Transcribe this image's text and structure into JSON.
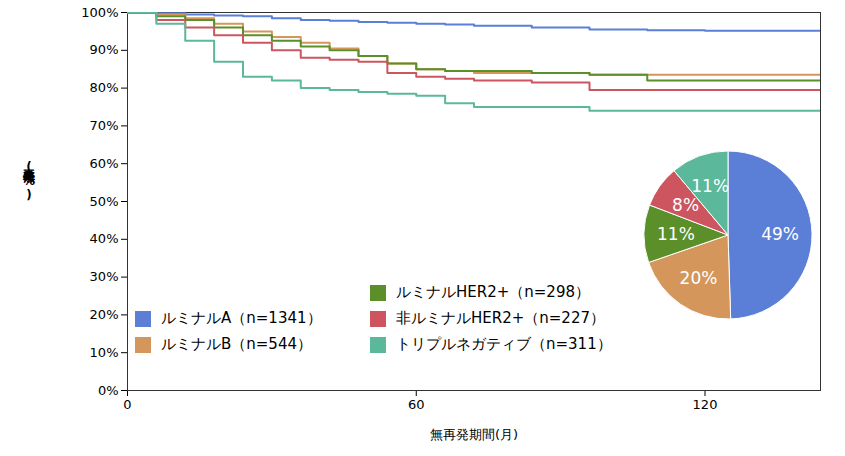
{
  "chart_data": [
    {
      "type": "line",
      "x_label": "無再発期間(月)",
      "y_label": "無再発率(%)",
      "x": [
        0,
        6,
        12,
        18,
        24,
        30,
        36,
        42,
        48,
        54,
        60,
        66,
        72,
        84,
        96,
        108,
        120,
        144
      ],
      "series": [
        {
          "name": "ルミナルA（n=1341）",
          "color": "#5b7fd6",
          "values": [
            100,
            99.8,
            99.5,
            99.2,
            99,
            98.5,
            98,
            97.8,
            97.5,
            97.3,
            97,
            96.8,
            96.5,
            96,
            95.5,
            95.3,
            95.2,
            95.2
          ]
        },
        {
          "name": "ルミナルB（n=544）",
          "color": "#d4965a",
          "values": [
            100,
            99.5,
            98.5,
            97,
            95,
            93.5,
            92,
            90.5,
            88.5,
            86.5,
            85,
            84.5,
            84,
            84,
            83.5,
            83.5,
            83.5,
            83.5
          ]
        },
        {
          "name": "ルミナルHER2+（n=298）",
          "color": "#5a8f2a",
          "values": [
            100,
            99,
            98,
            96,
            94,
            92.5,
            91,
            90,
            88.5,
            86.5,
            85,
            84.5,
            84.5,
            84,
            83.5,
            82,
            82,
            82
          ]
        },
        {
          "name": "非ルミナルHER2+（n=227）",
          "color": "#cc5560",
          "values": [
            100,
            98,
            96,
            94,
            92,
            90,
            88,
            87.5,
            87,
            84,
            83,
            82.5,
            82,
            81.5,
            79.5,
            79.5,
            79.5,
            79.5
          ]
        },
        {
          "name": "トリプルネガティブ（n=311）",
          "color": "#5bb89a",
          "values": [
            100,
            97,
            92.5,
            87,
            83,
            82,
            80,
            79.5,
            79,
            78.5,
            78,
            76,
            75,
            75,
            74,
            74,
            74,
            74
          ]
        }
      ],
      "line_style": "step",
      "xlim": [
        0,
        144
      ],
      "xticks": [
        0,
        60,
        120
      ],
      "ylim": [
        0,
        100
      ],
      "yticks": [
        {
          "value": 0,
          "label": "0%"
        },
        {
          "value": 10,
          "label": "10%"
        },
        {
          "value": 20,
          "label": "20%"
        },
        {
          "value": 30,
          "label": "30%"
        },
        {
          "value": 40,
          "label": "40%"
        },
        {
          "value": 50,
          "label": "50%"
        },
        {
          "value": 60,
          "label": "60%"
        },
        {
          "value": 70,
          "label": "70%"
        },
        {
          "value": 80,
          "label": "80%"
        },
        {
          "value": 90,
          "label": "90%"
        },
        {
          "value": 100,
          "label": "100%"
        }
      ],
      "grid": false,
      "legend": "bottom-left"
    },
    {
      "type": "pie",
      "categories": [
        "ルミナルA（n=1341）",
        "ルミナルB（n=544）",
        "ルミナルHER2+（n=298）",
        "非ルミナルHER2+（n=227）",
        "トリプルネガティブ（n=311）"
      ],
      "values": [
        49,
        20,
        11,
        8,
        11
      ],
      "value_labels": [
        "49%",
        "20%",
        "11%",
        "8%",
        "11%"
      ],
      "colors": [
        "#5b7fd6",
        "#d4965a",
        "#5a8f2a",
        "#cc5560",
        "#5bb89a"
      ],
      "data_labels": true
    }
  ]
}
